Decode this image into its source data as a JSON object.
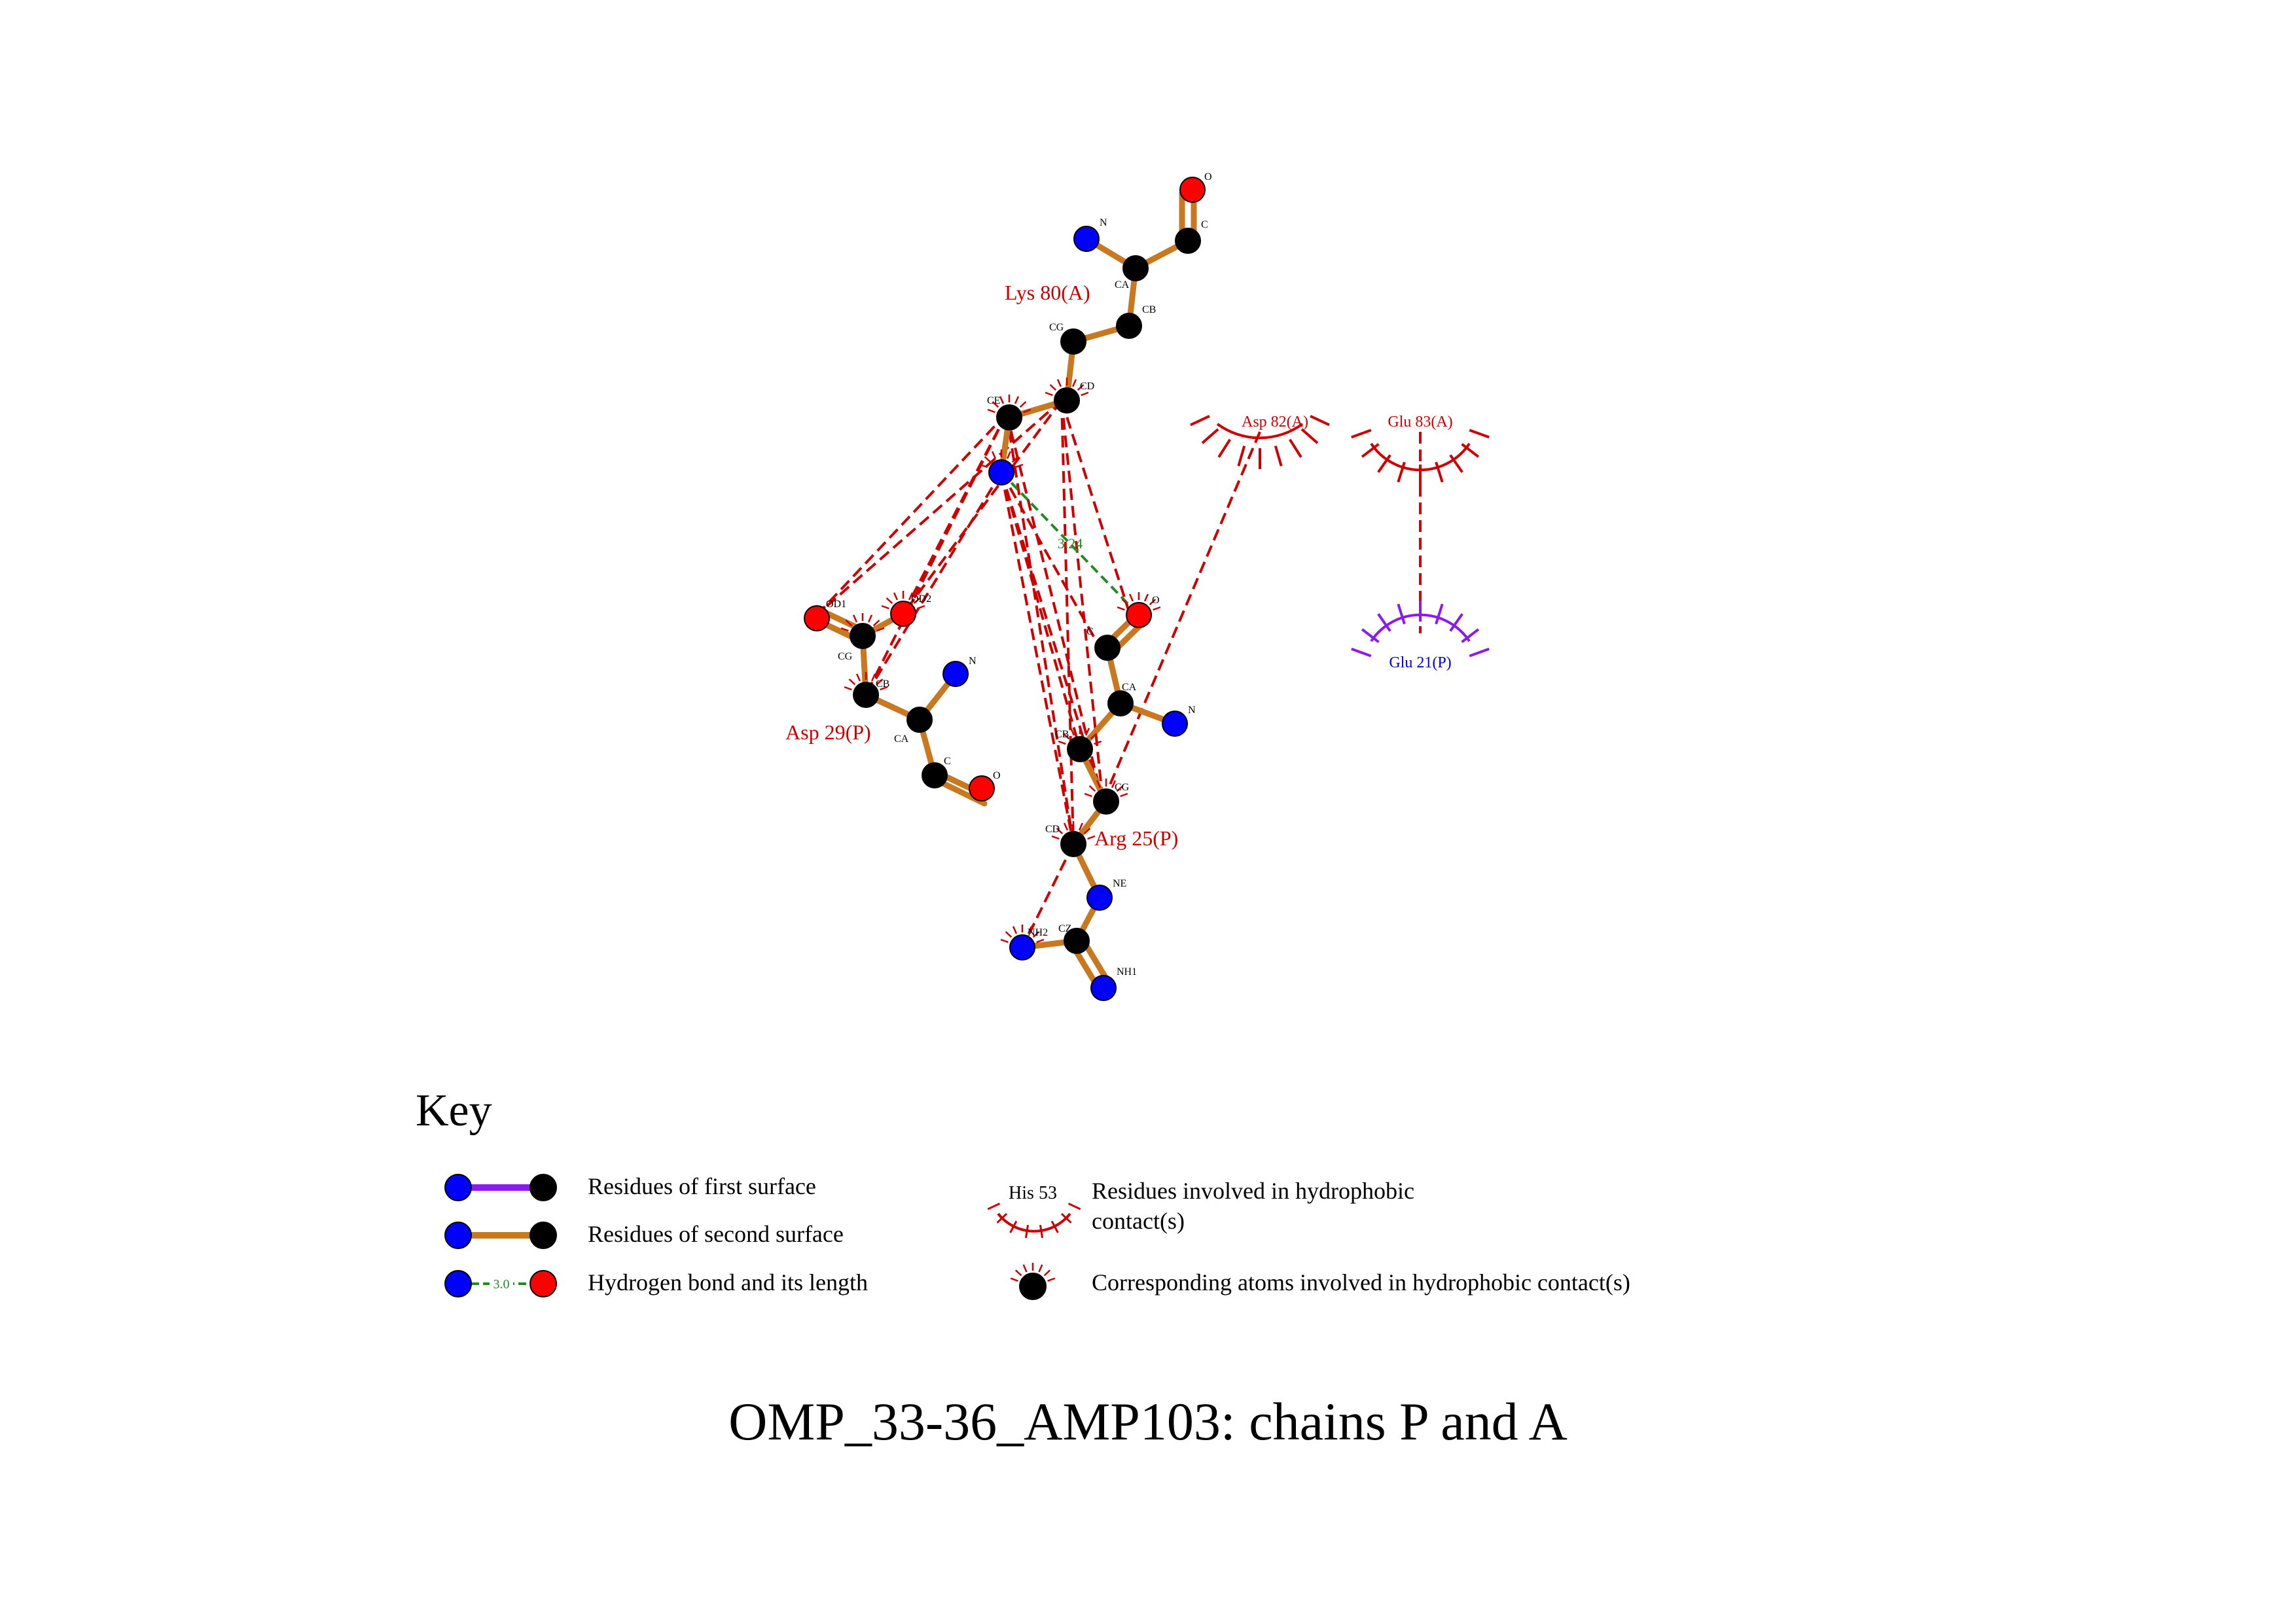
{
  "diagram": {
    "title": "OMP_33-36_AMP103: chains P and A",
    "colors": {
      "bond_second_surface": "#C8781E",
      "bond_first_surface": "#8A1AF0",
      "hydrophobic": "#CC0000",
      "hbond": "#228B22",
      "atom_N": "#0000FF",
      "atom_O": "#FF0000",
      "atom_C": "#000000",
      "chain_P_label": "#CC0000",
      "chain_A_label": "#CC0000",
      "first_surface_label": "#0000CC"
    },
    "residues": [
      {
        "id": "lys80",
        "label": "Lys 80(A)",
        "chain": "A"
      },
      {
        "id": "asp29",
        "label": "Asp 29(P)",
        "chain": "P"
      },
      {
        "id": "arg25",
        "label": "Arg 25(P)",
        "chain": "P"
      }
    ],
    "hydrophobic_residues": [
      {
        "id": "asp82",
        "label": "Asp 82(A)",
        "surface": "second"
      },
      {
        "id": "glu83",
        "label": "Glu 83(A)",
        "surface": "second"
      },
      {
        "id": "glu21",
        "label": "Glu 21(P)",
        "surface": "first"
      }
    ],
    "atoms": {
      "lys80": {
        "N": "N",
        "CA": "CA",
        "C": "C",
        "O": "O",
        "CB": "CB",
        "CG": "CG",
        "CD": "CD",
        "CE": "CE",
        "NZ": ""
      },
      "asp29": {
        "OD1": "OD1",
        "OD2": "OD2",
        "CG": "CG",
        "CB": "CB",
        "CA": "CA",
        "N": "N",
        "C": "C",
        "O": "O"
      },
      "arg25": {
        "O": "O",
        "C": "C",
        "CA": "CA",
        "N": "N",
        "CB": "CB",
        "CG": "CG",
        "CD": "CD",
        "NE": "NE",
        "CZ": "CZ",
        "NH1": "NH1",
        "NH2": "NH2"
      }
    },
    "hbond": {
      "from": "lys80.NZ",
      "to": "arg25.O",
      "length": "3.24"
    }
  },
  "key": {
    "title": "Key",
    "items": {
      "first_surface": "Residues of first surface",
      "second_surface": "Residues of second surface",
      "hbond": "Hydrogen bond and its length",
      "hbond_example_length": "3.0",
      "hydrophobic_residue": "Residues involved in hydrophobic",
      "hydrophobic_residue_line2": "contact(s)",
      "hydrophobic_example_label": "His 53",
      "hydrophobic_atoms": "Corresponding atoms involved in hydrophobic contact(s)"
    }
  }
}
